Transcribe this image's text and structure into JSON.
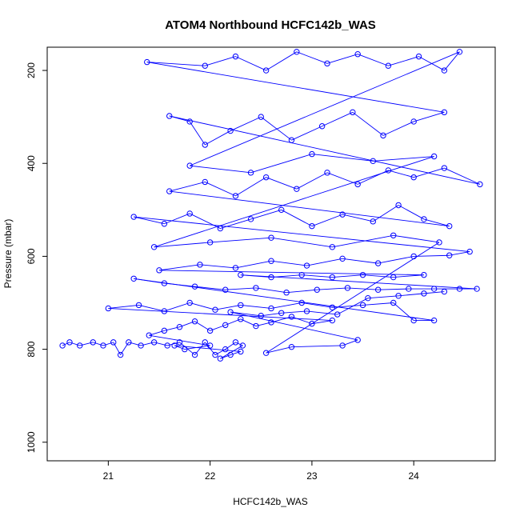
{
  "chart_data": {
    "type": "scatter",
    "title": "ATOM4 Northbound HCFC142b_WAS",
    "xlabel": "HCFC142b_WAS",
    "ylabel": "Pressure (mbar)",
    "xlim": [
      20.4,
      24.8
    ],
    "ylim": [
      1040,
      150
    ],
    "y_reversed": true,
    "xticks": [
      21,
      22,
      23,
      24
    ],
    "yticks": [
      200,
      400,
      600,
      800,
      1000
    ],
    "markers": "open circles connected by lines",
    "grid": false,
    "legend": "none",
    "series_color": "#0000ff",
    "series": [
      {
        "values": [
          [
            20.55,
            792
          ],
          [
            20.62,
            785
          ],
          [
            20.72,
            792
          ],
          [
            20.85,
            785
          ],
          [
            20.95,
            792
          ],
          [
            21.05,
            785
          ],
          [
            21.12,
            812
          ],
          [
            21.2,
            785
          ],
          [
            21.32,
            792
          ],
          [
            21.45,
            785
          ],
          [
            21.58,
            792
          ],
          [
            21.7,
            785
          ],
          [
            21.85,
            812
          ],
          [
            21.95,
            785
          ],
          [
            22.05,
            812
          ],
          [
            22.15,
            800
          ],
          [
            22.25,
            785
          ],
          [
            22.32,
            792
          ],
          [
            22.1,
            820
          ],
          [
            22.2,
            812
          ],
          [
            22.3,
            805
          ],
          [
            21.65,
            792
          ],
          [
            21.75,
            800
          ],
          [
            22.0,
            792
          ],
          [
            21.4,
            770
          ],
          [
            21.55,
            760
          ],
          [
            21.7,
            752
          ],
          [
            21.85,
            740
          ],
          [
            22.0,
            760
          ],
          [
            22.15,
            748
          ],
          [
            22.3,
            735
          ],
          [
            22.45,
            750
          ],
          [
            22.6,
            742
          ],
          [
            22.8,
            730
          ],
          [
            23.0,
            745
          ],
          [
            23.2,
            738
          ],
          [
            21.0,
            712
          ],
          [
            21.3,
            705
          ],
          [
            21.55,
            718
          ],
          [
            21.8,
            700
          ],
          [
            22.05,
            715
          ],
          [
            22.3,
            705
          ],
          [
            22.6,
            712
          ],
          [
            22.9,
            700
          ],
          [
            23.2,
            710
          ],
          [
            23.5,
            705
          ],
          [
            23.8,
            700
          ],
          [
            24.0,
            738
          ],
          [
            24.2,
            738
          ],
          [
            21.25,
            648
          ],
          [
            21.55,
            658
          ],
          [
            21.85,
            665
          ],
          [
            22.15,
            672
          ],
          [
            22.45,
            668
          ],
          [
            22.75,
            678
          ],
          [
            23.05,
            672
          ],
          [
            23.35,
            668
          ],
          [
            23.65,
            672
          ],
          [
            23.95,
            670
          ],
          [
            24.2,
            670
          ],
          [
            24.45,
            670
          ],
          [
            24.62,
            670
          ],
          [
            22.3,
            640
          ],
          [
            22.6,
            645
          ],
          [
            22.9,
            640
          ],
          [
            23.2,
            645
          ],
          [
            23.5,
            640
          ],
          [
            23.8,
            645
          ],
          [
            24.1,
            640
          ],
          [
            21.5,
            630
          ],
          [
            21.9,
            618
          ],
          [
            22.25,
            625
          ],
          [
            22.6,
            610
          ],
          [
            22.95,
            620
          ],
          [
            23.3,
            605
          ],
          [
            23.65,
            615
          ],
          [
            24.0,
            600
          ],
          [
            24.35,
            598
          ],
          [
            24.55,
            590
          ],
          [
            21.25,
            515
          ],
          [
            21.55,
            530
          ],
          [
            21.8,
            508
          ],
          [
            22.1,
            540
          ],
          [
            22.4,
            520
          ],
          [
            22.7,
            500
          ],
          [
            23.0,
            535
          ],
          [
            23.3,
            510
          ],
          [
            23.6,
            525
          ],
          [
            23.85,
            490
          ],
          [
            24.1,
            520
          ],
          [
            24.35,
            535
          ],
          [
            21.6,
            460
          ],
          [
            21.95,
            440
          ],
          [
            22.25,
            470
          ],
          [
            22.55,
            430
          ],
          [
            22.85,
            455
          ],
          [
            23.15,
            420
          ],
          [
            23.45,
            445
          ],
          [
            23.75,
            415
          ],
          [
            24.0,
            430
          ],
          [
            24.3,
            410
          ],
          [
            24.65,
            445
          ],
          [
            21.6,
            298
          ],
          [
            21.8,
            310
          ],
          [
            21.95,
            360
          ],
          [
            22.2,
            330
          ],
          [
            22.5,
            300
          ],
          [
            22.8,
            350
          ],
          [
            23.1,
            320
          ],
          [
            23.4,
            290
          ],
          [
            23.7,
            340
          ],
          [
            24.0,
            310
          ],
          [
            24.3,
            290
          ],
          [
            21.38,
            182
          ],
          [
            21.95,
            190
          ],
          [
            22.25,
            170
          ],
          [
            22.55,
            200
          ],
          [
            22.85,
            160
          ],
          [
            23.15,
            185
          ],
          [
            23.45,
            165
          ],
          [
            23.75,
            190
          ],
          [
            24.05,
            170
          ],
          [
            24.3,
            200
          ],
          [
            24.45,
            160
          ],
          [
            21.8,
            405
          ],
          [
            22.4,
            420
          ],
          [
            23.0,
            380
          ],
          [
            23.6,
            395
          ],
          [
            24.2,
            385
          ],
          [
            21.45,
            580
          ],
          [
            22.0,
            570
          ],
          [
            22.6,
            560
          ],
          [
            23.2,
            580
          ],
          [
            23.8,
            555
          ],
          [
            24.25,
            570
          ],
          [
            22.55,
            808
          ],
          [
            22.8,
            795
          ],
          [
            23.3,
            792
          ],
          [
            23.45,
            780
          ],
          [
            22.2,
            720
          ],
          [
            22.5,
            728
          ],
          [
            22.7,
            722
          ],
          [
            22.95,
            718
          ],
          [
            23.25,
            725
          ],
          [
            23.55,
            690
          ],
          [
            23.85,
            685
          ],
          [
            24.1,
            680
          ],
          [
            24.3,
            676
          ]
        ]
      }
    ]
  }
}
